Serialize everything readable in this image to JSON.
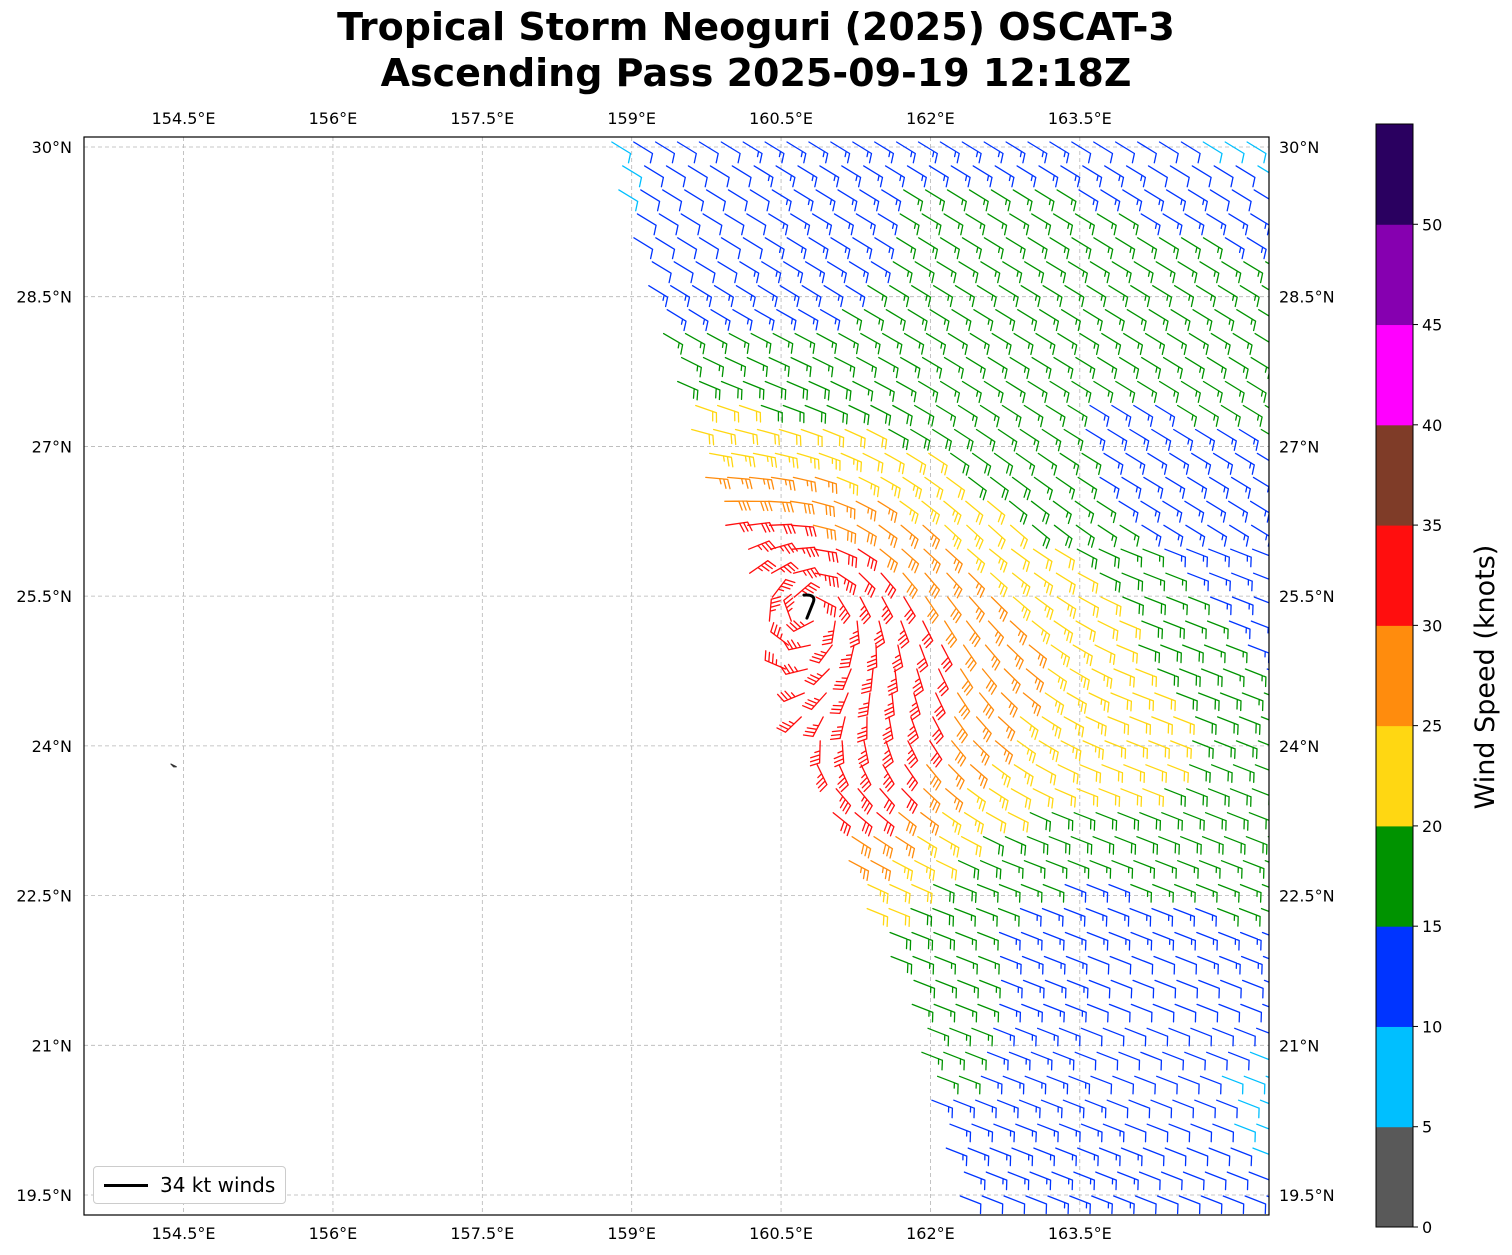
{
  "title": {
    "line1": "Tropical Storm Neoguri (2025) OSCAT-3",
    "line2": "Ascending Pass 2025-09-19 12:18Z"
  },
  "map": {
    "lon_range": [
      153.5,
      165.4
    ],
    "lat_range": [
      19.3,
      30.1
    ],
    "lon_ticks": [
      154.5,
      156,
      157.5,
      159,
      160.5,
      162,
      163.5
    ],
    "lon_tick_labels": [
      "154.5°E",
      "156°E",
      "157.5°E",
      "159°E",
      "160.5°E",
      "162°E",
      "163.5°E"
    ],
    "lat_ticks": [
      19.5,
      21,
      22.5,
      24,
      25.5,
      27,
      28.5,
      30
    ],
    "lat_tick_labels": [
      "19.5°N",
      "21°N",
      "22.5°N",
      "24°N",
      "25.5°N",
      "27°N",
      "28.5°N",
      "30°N"
    ],
    "gridlines": true,
    "swath": {
      "west_edge": [
        [
          29.8,
          158.8
        ],
        [
          28.2,
          159.3
        ],
        [
          26.5,
          159.8
        ],
        [
          25.5,
          160.3
        ],
        [
          24.0,
          160.8
        ],
        [
          22.5,
          161.3
        ],
        [
          21.5,
          161.8
        ],
        [
          20.5,
          162.0
        ],
        [
          19.5,
          162.3
        ]
      ],
      "east_edge_lon": 165.4,
      "row_spacing_deg": 0.24,
      "col_spacing_deg": 0.22
    },
    "island": {
      "lat": 23.8,
      "lon": 154.4
    },
    "storm_center": {
      "lat": 25.4,
      "lon": 160.8
    },
    "legend": {
      "label": "34 kt winds",
      "color": "#000000"
    }
  },
  "colorbar": {
    "label": "Wind Speed (knots)",
    "bins": [
      {
        "min": 0,
        "max": 5,
        "color": "#595959"
      },
      {
        "min": 5,
        "max": 10,
        "color": "#00BFFF"
      },
      {
        "min": 10,
        "max": 15,
        "color": "#0034FF"
      },
      {
        "min": 15,
        "max": 20,
        "color": "#009300"
      },
      {
        "min": 20,
        "max": 25,
        "color": "#FFD712"
      },
      {
        "min": 25,
        "max": 30,
        "color": "#FF8C0D"
      },
      {
        "min": 30,
        "max": 35,
        "color": "#FF0E0E"
      },
      {
        "min": 35,
        "max": 40,
        "color": "#7F3C28"
      },
      {
        "min": 40,
        "max": 45,
        "color": "#FF00FF"
      },
      {
        "min": 45,
        "max": 50,
        "color": "#8600B0"
      },
      {
        "min": 50,
        "max": 55,
        "color": "#2A0060"
      }
    ],
    "tick_labels": [
      "0",
      "5",
      "10",
      "15",
      "20",
      "25",
      "30",
      "35",
      "40",
      "45",
      "50"
    ]
  }
}
